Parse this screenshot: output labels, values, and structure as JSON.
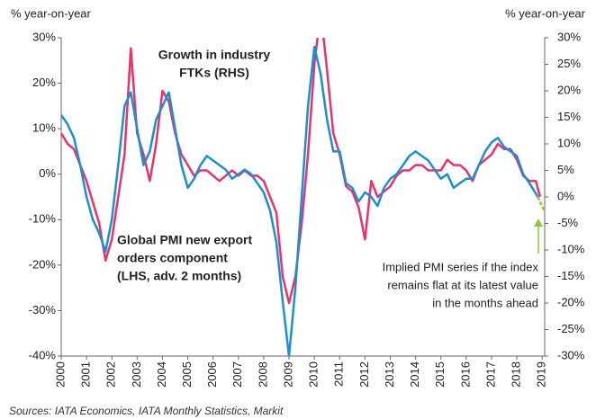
{
  "chart_data": {
    "type": "line",
    "ylabel": "% year-on-year",
    "y2label": "% year-on-year",
    "source": "Sources: IATA Economics, IATA Monthly Statistics, Markit",
    "xlim": [
      2000,
      2019.1
    ],
    "xticks": [
      2000,
      2001,
      2002,
      2003,
      2004,
      2005,
      2006,
      2007,
      2008,
      2009,
      2010,
      2011,
      2012,
      2013,
      2014,
      2015,
      2016,
      2017,
      2018,
      2019
    ],
    "ylim": [
      -40,
      30
    ],
    "yticks": [
      {
        "value": 30,
        "label": "30%"
      },
      {
        "value": 20,
        "label": "20%"
      },
      {
        "value": 10,
        "label": "10%"
      },
      {
        "value": 0,
        "label": "0%"
      },
      {
        "value": -10,
        "label": "-10%"
      },
      {
        "value": -20,
        "label": "-20%"
      },
      {
        "value": -30,
        "label": "-30%"
      },
      {
        "value": -40,
        "label": "-40%"
      }
    ],
    "y2lim": [
      -30,
      30
    ],
    "y2ticks": [
      {
        "value": 30,
        "label": "30%"
      },
      {
        "value": 25,
        "label": "25%"
      },
      {
        "value": 20,
        "label": "20%"
      },
      {
        "value": 15,
        "label": "15%"
      },
      {
        "value": 10,
        "label": "10%"
      },
      {
        "value": 5,
        "label": "5%"
      },
      {
        "value": 0,
        "label": "0%"
      },
      {
        "value": -5,
        "label": "-5%"
      },
      {
        "value": -10,
        "label": "-10%"
      },
      {
        "value": -15,
        "label": "-15%"
      },
      {
        "value": -20,
        "label": "-20%"
      },
      {
        "value": -25,
        "label": "-25%"
      },
      {
        "value": -30,
        "label": "-30%"
      }
    ],
    "annotations": [
      {
        "lines": [
          "Growth in industry",
          "FTKs (RHS)"
        ],
        "color": "#e8336e"
      },
      {
        "lines": [
          "Global PMI new export",
          "orders component",
          "(LHS, adv. 2 months)"
        ],
        "color": "#1b8fd0"
      },
      {
        "lines": [
          "Implied PMI series if the index",
          "remains flat at its latest value",
          "in the months ahead"
        ],
        "color": "#8dc63f"
      }
    ],
    "series": [
      {
        "color": "#1b8fd0",
        "axis": "y",
        "x": [
          2000,
          2000.25,
          2000.5,
          2000.75,
          2001,
          2001.25,
          2001.5,
          2001.75,
          2002,
          2002.25,
          2002.5,
          2002.75,
          2003,
          2003.25,
          2003.5,
          2003.75,
          2004,
          2004.25,
          2004.5,
          2004.75,
          2005,
          2005.25,
          2005.5,
          2005.75,
          2006,
          2006.25,
          2006.5,
          2006.75,
          2007,
          2007.25,
          2007.5,
          2007.75,
          2008,
          2008.25,
          2008.5,
          2008.75,
          2009,
          2009.25,
          2009.5,
          2009.75,
          2010,
          2010.25,
          2010.5,
          2010.75,
          2011,
          2011.25,
          2011.5,
          2011.75,
          2012,
          2012.25,
          2012.5,
          2012.75,
          2013,
          2013.25,
          2013.5,
          2013.75,
          2014,
          2014.25,
          2014.5,
          2014.75,
          2015,
          2015.25,
          2015.5,
          2015.75,
          2016,
          2016.25,
          2016.5,
          2016.75,
          2017,
          2017.25,
          2017.5,
          2017.75,
          2018,
          2018.25,
          2018.5,
          2018.83
        ],
        "values": [
          13,
          11,
          8,
          2,
          -5,
          -10,
          -13,
          -17,
          -10,
          2,
          15,
          18,
          10,
          2,
          5,
          12,
          15,
          18,
          10,
          2,
          -3,
          -1,
          2,
          4,
          3,
          2,
          1,
          -1,
          0,
          1,
          0,
          -2,
          -4,
          -8,
          -15,
          -28,
          -40,
          -25,
          -5,
          15,
          28,
          22,
          12,
          5,
          5,
          -2,
          -3,
          -6,
          -4,
          -5,
          -7,
          -3,
          -1,
          0,
          2,
          4,
          5,
          4,
          3,
          1,
          -1,
          0,
          -3,
          -2,
          -1,
          -1,
          2,
          5,
          7,
          8,
          6,
          5,
          4,
          0,
          -2,
          -5
        ]
      },
      {
        "color": "#e8336e",
        "axis": "y2",
        "x": [
          2000,
          2000.25,
          2000.5,
          2000.75,
          2001,
          2001.25,
          2001.5,
          2001.75,
          2002,
          2002.25,
          2002.5,
          2002.75,
          2003,
          2003.25,
          2003.5,
          2003.75,
          2004,
          2004.25,
          2004.5,
          2004.75,
          2005,
          2005.25,
          2005.5,
          2005.75,
          2006,
          2006.25,
          2006.5,
          2006.75,
          2007,
          2007.25,
          2007.5,
          2007.75,
          2008,
          2008.25,
          2008.5,
          2008.75,
          2009,
          2009.25,
          2009.5,
          2009.75,
          2010,
          2010.25,
          2010.5,
          2010.75,
          2011,
          2011.25,
          2011.5,
          2011.75,
          2012,
          2012.25,
          2012.5,
          2012.75,
          2013,
          2013.25,
          2013.5,
          2013.75,
          2014,
          2014.25,
          2014.5,
          2014.75,
          2015,
          2015.25,
          2015.5,
          2015.75,
          2016,
          2016.25,
          2016.5,
          2016.75,
          2017,
          2017.25,
          2017.5,
          2017.75,
          2018,
          2018.25,
          2018.5,
          2018.75,
          2018.92
        ],
        "values": [
          12,
          10,
          9,
          6,
          3,
          -1,
          -5,
          -12,
          -8,
          0,
          8,
          28,
          12,
          8,
          3,
          10,
          20,
          18,
          12,
          8,
          6,
          4,
          5,
          5,
          4,
          3,
          4,
          5,
          4,
          5,
          4,
          4,
          3,
          0,
          -3,
          -15,
          -20,
          -15,
          -5,
          8,
          25,
          35,
          24,
          12,
          8,
          2,
          1,
          -2,
          -8,
          3,
          0,
          1,
          2,
          4,
          5,
          5,
          6,
          6,
          5,
          5,
          5,
          7,
          6,
          6,
          5,
          3,
          6,
          7,
          8,
          10,
          9,
          9,
          7,
          4,
          3,
          3,
          0
        ]
      },
      {
        "color": "#8dc63f",
        "axis": "y",
        "dashed": true,
        "x": [
          2018.83,
          2019.08
        ],
        "values": [
          -5,
          -8
        ]
      }
    ]
  }
}
